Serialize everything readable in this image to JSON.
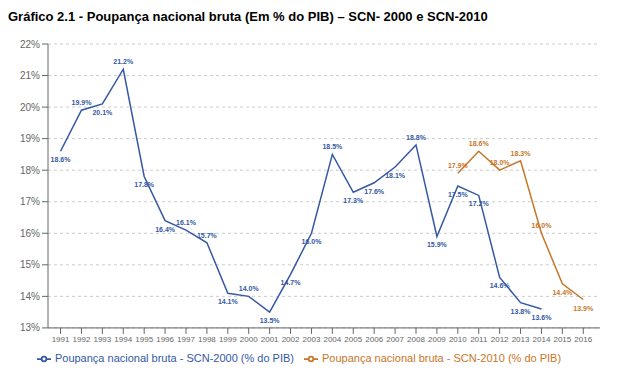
{
  "chart_data": {
    "type": "line",
    "title": "Gráfico 2.1 - Poupança nacional bruta (Em % do PIB) – SCN- 2000 e SCN-2010",
    "x": [
      1991,
      1992,
      1993,
      1994,
      1995,
      1996,
      1997,
      1998,
      1999,
      2000,
      2001,
      2002,
      2003,
      2004,
      2005,
      2006,
      2007,
      2008,
      2009,
      2010,
      2011,
      2012,
      2013,
      2014,
      2015,
      2016
    ],
    "series": [
      {
        "name": "Poupança nacional bruta - SCN-2000 (% do PIB)",
        "color": "#3458a4",
        "values": [
          18.6,
          19.9,
          20.1,
          21.2,
          17.8,
          16.4,
          16.1,
          15.7,
          14.1,
          14.0,
          13.5,
          14.7,
          16.0,
          18.5,
          17.3,
          17.6,
          18.1,
          18.8,
          15.9,
          17.5,
          17.2,
          14.6,
          13.8,
          13.6,
          null,
          null
        ],
        "value_labels": [
          "18.6%",
          "19.9%",
          "20.1%",
          "21.2%",
          "17.8%",
          "16.4%",
          "16.1%",
          "15.7%",
          "14.1%",
          "14.0%",
          "13.5%",
          "14.7%",
          "16.0%",
          "18.5%",
          "17.3%",
          "17.6%",
          "18.1%",
          "18.8%",
          "15.9%",
          "17.5%",
          "17.2%",
          "14.6%",
          "13.8%",
          "13.6%",
          null,
          null
        ]
      },
      {
        "name": "Poupança nacional bruta - SCN-2010 (% do PIB)",
        "color": "#c8762a",
        "values": [
          null,
          null,
          null,
          null,
          null,
          null,
          null,
          null,
          null,
          null,
          null,
          null,
          null,
          null,
          null,
          null,
          null,
          null,
          null,
          17.9,
          18.6,
          18.0,
          18.3,
          16.0,
          14.4,
          13.9
        ],
        "value_labels": [
          null,
          null,
          null,
          null,
          null,
          null,
          null,
          null,
          null,
          null,
          null,
          null,
          null,
          null,
          null,
          null,
          null,
          null,
          null,
          "17.9%",
          "18.6%",
          "18.0%",
          "18.3%",
          "16.0%",
          "14.4%",
          "13.9%"
        ]
      }
    ],
    "xlim": [
      1990.4,
      2016.8
    ],
    "xticks": [
      1991,
      1992,
      1993,
      1994,
      1995,
      1996,
      1997,
      1998,
      1999,
      2000,
      2001,
      2002,
      2003,
      2004,
      2005,
      2006,
      2007,
      2008,
      2009,
      2010,
      2011,
      2012,
      2013,
      2014,
      2015,
      2016
    ],
    "ylim": [
      13,
      22
    ],
    "yticks": [
      {
        "value": 13,
        "label": "13%"
      },
      {
        "value": 14,
        "label": "14%"
      },
      {
        "value": 15,
        "label": "15%"
      },
      {
        "value": 16,
        "label": "16%"
      },
      {
        "value": 17,
        "label": "17%"
      },
      {
        "value": 18,
        "label": "18%"
      },
      {
        "value": 19,
        "label": "19%"
      },
      {
        "value": 20,
        "label": "20%"
      },
      {
        "value": 21,
        "label": "21%"
      },
      {
        "value": 22,
        "label": "22%"
      }
    ],
    "grid": true,
    "legend": "bottom",
    "data_labels": true
  }
}
